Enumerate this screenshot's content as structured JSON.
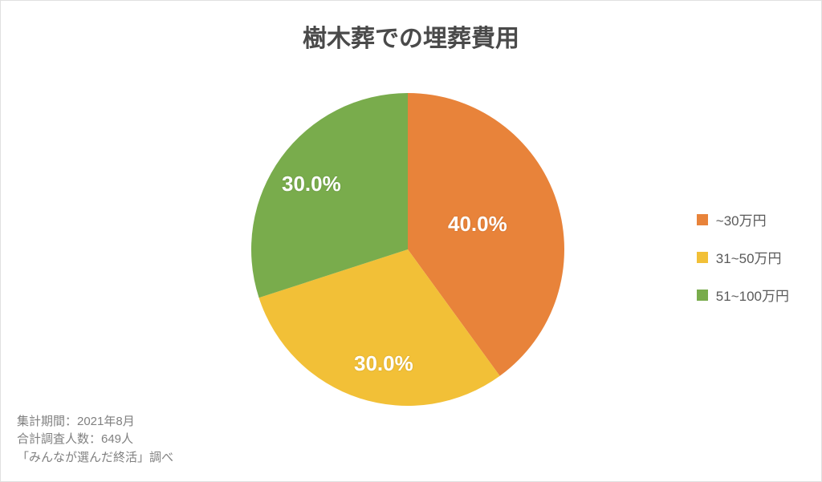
{
  "chart": {
    "type": "pie",
    "title": "樹木葬での埋葬費用",
    "title_fontsize": 30,
    "title_color": "#4a4a4a",
    "background_color": "#ffffff",
    "border_color": "#e0e0e0",
    "pie_radius": 195,
    "slices": [
      {
        "label": "~30万円",
        "value": 40.0,
        "display": "40.0%",
        "color": "#e8833a"
      },
      {
        "label": "31~50万円",
        "value": 30.0,
        "display": "30.0%",
        "color": "#f2c037"
      },
      {
        "label": "51~100万円",
        "value": 30.0,
        "display": "30.0%",
        "color": "#79ac4c"
      }
    ],
    "label_fontsize": 26,
    "label_color": "#ffffff",
    "legend": {
      "fontsize": 17,
      "color": "#5a5a5a",
      "swatch_size": 14,
      "position": "right-middle"
    },
    "footer": {
      "lines": [
        "集計期間：2021年8月",
        "合計調査人数：649人",
        "「みんなが選んだ終活」調べ"
      ],
      "fontsize": 15,
      "color": "#808080"
    }
  }
}
